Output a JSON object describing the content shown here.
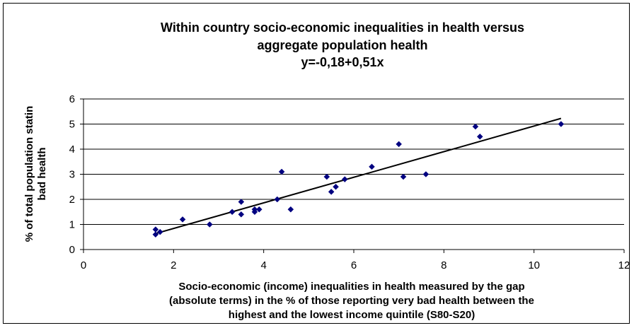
{
  "chart_data": {
    "type": "scatter",
    "title_lines": [
      "Within country socio-economic inequalities in health versus",
      "aggregate population health",
      "y=-0,18+0,51x"
    ],
    "xlabel_lines": [
      "Socio-economic (income) inequalities in health measured by the gap",
      "(absolute terms) in the % of those reporting very bad health between the",
      "highest and the lowest income quintile (S80-S20)"
    ],
    "ylabel_lines": [
      "% of total population statin",
      "bad health"
    ],
    "xlim": [
      0,
      12
    ],
    "ylim": [
      0,
      6
    ],
    "xticks": [
      0,
      2,
      4,
      6,
      8,
      10,
      12
    ],
    "yticks": [
      0,
      1,
      2,
      3,
      4,
      5,
      6
    ],
    "grid": "horizontal",
    "marker_color": "#000080",
    "points": [
      {
        "x": 1.6,
        "y": 0.8
      },
      {
        "x": 1.6,
        "y": 0.6
      },
      {
        "x": 1.7,
        "y": 0.7
      },
      {
        "x": 2.2,
        "y": 1.2
      },
      {
        "x": 2.8,
        "y": 1.0
      },
      {
        "x": 3.3,
        "y": 1.5
      },
      {
        "x": 3.5,
        "y": 1.9
      },
      {
        "x": 3.5,
        "y": 1.4
      },
      {
        "x": 3.8,
        "y": 1.6
      },
      {
        "x": 3.8,
        "y": 1.5
      },
      {
        "x": 3.9,
        "y": 1.6
      },
      {
        "x": 4.3,
        "y": 2.0
      },
      {
        "x": 4.4,
        "y": 3.1
      },
      {
        "x": 4.6,
        "y": 1.6
      },
      {
        "x": 5.4,
        "y": 2.9
      },
      {
        "x": 5.5,
        "y": 2.3
      },
      {
        "x": 5.6,
        "y": 2.5
      },
      {
        "x": 5.8,
        "y": 2.8
      },
      {
        "x": 6.4,
        "y": 3.3
      },
      {
        "x": 7.0,
        "y": 4.2
      },
      {
        "x": 7.1,
        "y": 2.9
      },
      {
        "x": 7.6,
        "y": 3.0
      },
      {
        "x": 8.7,
        "y": 4.9
      },
      {
        "x": 8.8,
        "y": 4.5
      },
      {
        "x": 10.6,
        "y": 5.0
      }
    ],
    "trendline": {
      "x_start": 1.6,
      "x_end": 10.6,
      "intercept": -0.18,
      "slope": 0.51,
      "color": "#000000"
    }
  }
}
